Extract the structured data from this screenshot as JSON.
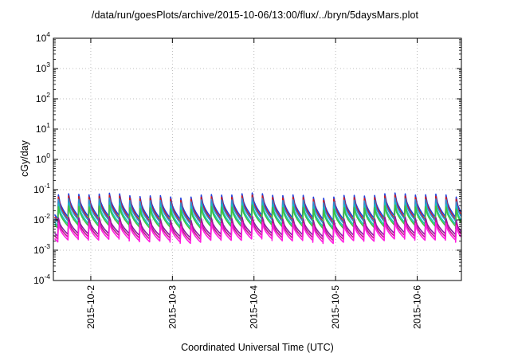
{
  "chart_data": {
    "type": "line",
    "title": "/data/run/goesPlots/archive/2015-10-06/13:00/flux/../bryn/5daysMars.plot",
    "xlabel": "Coordinated Universal Time (UTC)",
    "ylabel": "cGy/day",
    "y_scale": "log",
    "ylim": [
      0.0001,
      10000
    ],
    "y_ticks": [
      {
        "base": "10",
        "exp": "-4",
        "value": 0.0001
      },
      {
        "base": "10",
        "exp": "-3",
        "value": 0.001
      },
      {
        "base": "10",
        "exp": "-2",
        "value": 0.01
      },
      {
        "base": "10",
        "exp": "-1",
        "value": 0.1
      },
      {
        "base": "10",
        "exp": "0",
        "value": 1
      },
      {
        "base": "10",
        "exp": "1",
        "value": 10
      },
      {
        "base": "10",
        "exp": "2",
        "value": 100
      },
      {
        "base": "10",
        "exp": "3",
        "value": 1000
      },
      {
        "base": "10",
        "exp": "4",
        "value": 10000
      }
    ],
    "xlim": [
      "2015-10-01T13:00",
      "2015-10-06T13:00"
    ],
    "x_ticks": [
      "2015-10-2",
      "2015-10-3",
      "2015-10-4",
      "2015-10-5",
      "2015-10-6"
    ],
    "x_tick_values": [
      "2015-10-02T00:00",
      "2015-10-03T00:00",
      "2015-10-04T00:00",
      "2015-10-05T00:00",
      "2015-10-06T00:00"
    ],
    "grid": true,
    "pattern": "sawtooth, spikes every 3 hours, decaying between spikes",
    "series": [
      {
        "color": "#1f3fe0",
        "peak": 0.065,
        "trough": 0.012
      },
      {
        "color": "#d61a1a",
        "peak": 0.055,
        "trough": 0.01
      },
      {
        "color": "#2e8fd6",
        "peak": 0.045,
        "trough": 0.009
      },
      {
        "color": "#18c0c0",
        "peak": 0.032,
        "trough": 0.007
      },
      {
        "color": "#3fc23f",
        "peak": 0.026,
        "trough": 0.006
      },
      {
        "color": "#8a1aa0",
        "peak": 0.011,
        "trough": 0.0032
      },
      {
        "color": "#c0148c",
        "peak": 0.009,
        "trough": 0.0026
      },
      {
        "color": "#ff1fe0",
        "peak": 0.0075,
        "trough": 0.0021
      }
    ]
  }
}
